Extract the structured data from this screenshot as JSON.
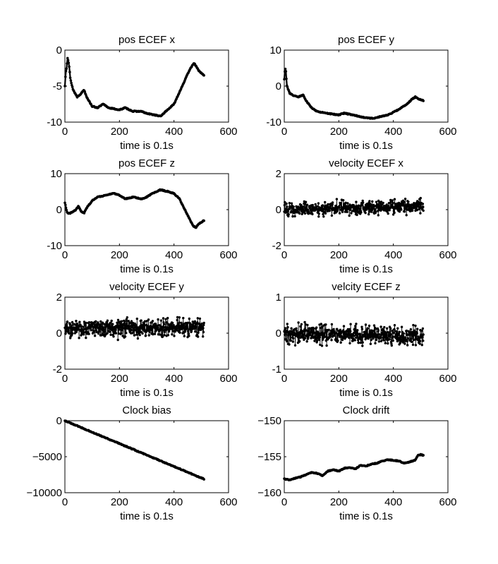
{
  "colors": {
    "line": "#000000",
    "background": "#ffffff",
    "axes": "#000000"
  },
  "chart_data": [
    {
      "type": "line",
      "title": "pos ECEF x",
      "xlabel": "time is 0.1s",
      "xlim": [
        0,
        600
      ],
      "ylim": [
        -10,
        0
      ],
      "xticks": [
        "0",
        "200",
        "400",
        "600"
      ],
      "yticks": [
        "0",
        "-5",
        "-10"
      ],
      "grid": false,
      "markers": true,
      "series": [
        {
          "x": [
            0,
            3,
            6,
            10,
            15,
            20,
            30,
            45,
            60,
            70,
            80,
            100,
            120,
            140,
            160,
            200,
            220,
            250,
            280,
            300,
            330,
            350,
            370,
            400,
            430,
            460,
            475,
            480,
            490,
            500,
            510
          ],
          "values": [
            -5,
            -3,
            -2.5,
            -1,
            -2,
            -4,
            -5.5,
            -6.5,
            -6,
            -5.5,
            -6.5,
            -7.8,
            -8,
            -7.5,
            -8,
            -8.3,
            -8,
            -8.5,
            -8.5,
            -8.8,
            -9,
            -9.2,
            -8.5,
            -7.5,
            -5,
            -2.5,
            -1.8,
            -2.2,
            -2.8,
            -3.2,
            -3.5
          ]
        }
      ]
    },
    {
      "type": "line",
      "title": "pos ECEF y",
      "xlabel": "time is 0.1s",
      "xlim": [
        0,
        600
      ],
      "ylim": [
        -10,
        10
      ],
      "xticks": [
        "0",
        "200",
        "400",
        "600"
      ],
      "yticks": [
        "10",
        "0",
        "-10"
      ],
      "grid": false,
      "markers": true,
      "series": [
        {
          "x": [
            0,
            3,
            6,
            10,
            15,
            20,
            30,
            50,
            70,
            80,
            100,
            120,
            150,
            200,
            220,
            250,
            300,
            330,
            350,
            380,
            420,
            450,
            470,
            480,
            490,
            510
          ],
          "values": [
            2,
            5,
            4,
            0,
            -1,
            -2,
            -2.5,
            -3,
            -2.5,
            -4,
            -6,
            -7,
            -7.5,
            -8,
            -7.5,
            -8,
            -8.8,
            -9,
            -8.5,
            -8,
            -6.5,
            -5,
            -3.5,
            -3,
            -3.5,
            -4
          ]
        }
      ]
    },
    {
      "type": "line",
      "title": "pos ECEF z",
      "xlabel": "time is 0.1s",
      "xlim": [
        0,
        600
      ],
      "ylim": [
        -10,
        10
      ],
      "xticks": [
        "0",
        "200",
        "400",
        "600"
      ],
      "yticks": [
        "10",
        "0",
        "-10"
      ],
      "grid": false,
      "markers": true,
      "series": [
        {
          "x": [
            0,
            5,
            10,
            20,
            30,
            40,
            50,
            60,
            70,
            80,
            100,
            120,
            150,
            180,
            200,
            220,
            250,
            280,
            300,
            320,
            350,
            380,
            400,
            420,
            440,
            460,
            470,
            480,
            490,
            500,
            510
          ],
          "values": [
            2,
            0,
            -1,
            -1,
            -0.5,
            0,
            1,
            -0.5,
            -1,
            0.5,
            2.5,
            3.5,
            4,
            4.5,
            4,
            3,
            3.5,
            3,
            3.5,
            4.5,
            5.5,
            5,
            4.5,
            3,
            0,
            -3,
            -4.5,
            -5,
            -4,
            -3.5,
            -3
          ]
        }
      ]
    },
    {
      "type": "scatter",
      "title": "velocity ECEF x",
      "xlabel": "time is 0.1s",
      "xlim": [
        0,
        600
      ],
      "ylim": [
        -2,
        2
      ],
      "xticks": [
        "0",
        "200",
        "400",
        "600"
      ],
      "yticks": [
        "2",
        "0",
        "-2"
      ],
      "grid": false,
      "markers": true,
      "noise": {
        "count": 510,
        "xmax": 510,
        "mean_start": 0.0,
        "mean_end": 0.2,
        "amplitude": 0.35
      }
    },
    {
      "type": "scatter",
      "title": "velocity ECEF y",
      "xlabel": "time is 0.1s",
      "xlim": [
        0,
        600
      ],
      "ylim": [
        -2,
        2
      ],
      "xticks": [
        "0",
        "200",
        "400",
        "600"
      ],
      "yticks": [
        "2",
        "0",
        "-2"
      ],
      "grid": false,
      "markers": true,
      "noise": {
        "count": 510,
        "xmax": 510,
        "mean_start": 0.25,
        "mean_end": 0.35,
        "amplitude": 0.45
      }
    },
    {
      "type": "scatter",
      "title": "velcity ECEF z",
      "xlabel": "time is 0.1s",
      "xlim": [
        0,
        600
      ],
      "ylim": [
        -1,
        1
      ],
      "xticks": [
        "0",
        "200",
        "400",
        "600"
      ],
      "yticks": [
        "1",
        "0",
        "-1"
      ],
      "grid": false,
      "markers": true,
      "noise": {
        "count": 510,
        "xmax": 510,
        "mean_start": 0.0,
        "mean_end": -0.1,
        "amplitude": 0.25
      }
    },
    {
      "type": "line",
      "title": "Clock bias",
      "xlabel": "time is 0.1s",
      "xlim": [
        0,
        600
      ],
      "ylim": [
        -10000,
        0
      ],
      "xticks": [
        "0",
        "200",
        "400",
        "600"
      ],
      "yticks": [
        "0",
        "−5000",
        "−10000"
      ],
      "grid": false,
      "markers": true,
      "series": [
        {
          "x": [
            0,
            510
          ],
          "values": [
            0,
            -8100
          ]
        }
      ]
    },
    {
      "type": "line",
      "title": "Clock drift",
      "xlabel": "time is 0.1s",
      "xlim": [
        0,
        600
      ],
      "ylim": [
        -160,
        -150
      ],
      "xticks": [
        "0",
        "200",
        "400",
        "600"
      ],
      "yticks": [
        "−150",
        "−155",
        "−160"
      ],
      "grid": false,
      "markers": true,
      "series": [
        {
          "x": [
            0,
            20,
            40,
            60,
            80,
            100,
            120,
            140,
            160,
            180,
            200,
            220,
            240,
            260,
            280,
            300,
            320,
            340,
            360,
            380,
            400,
            420,
            440,
            460,
            480,
            490,
            500,
            510
          ],
          "values": [
            -158.1,
            -158.2,
            -158,
            -157.8,
            -157.5,
            -157.2,
            -157.3,
            -157.6,
            -157,
            -156.8,
            -157,
            -156.6,
            -156.5,
            -156.7,
            -156.2,
            -156.3,
            -156,
            -155.9,
            -155.6,
            -155.4,
            -155.5,
            -155.6,
            -155.9,
            -155.7,
            -155.5,
            -154.8,
            -154.7,
            -154.8
          ]
        }
      ]
    }
  ]
}
